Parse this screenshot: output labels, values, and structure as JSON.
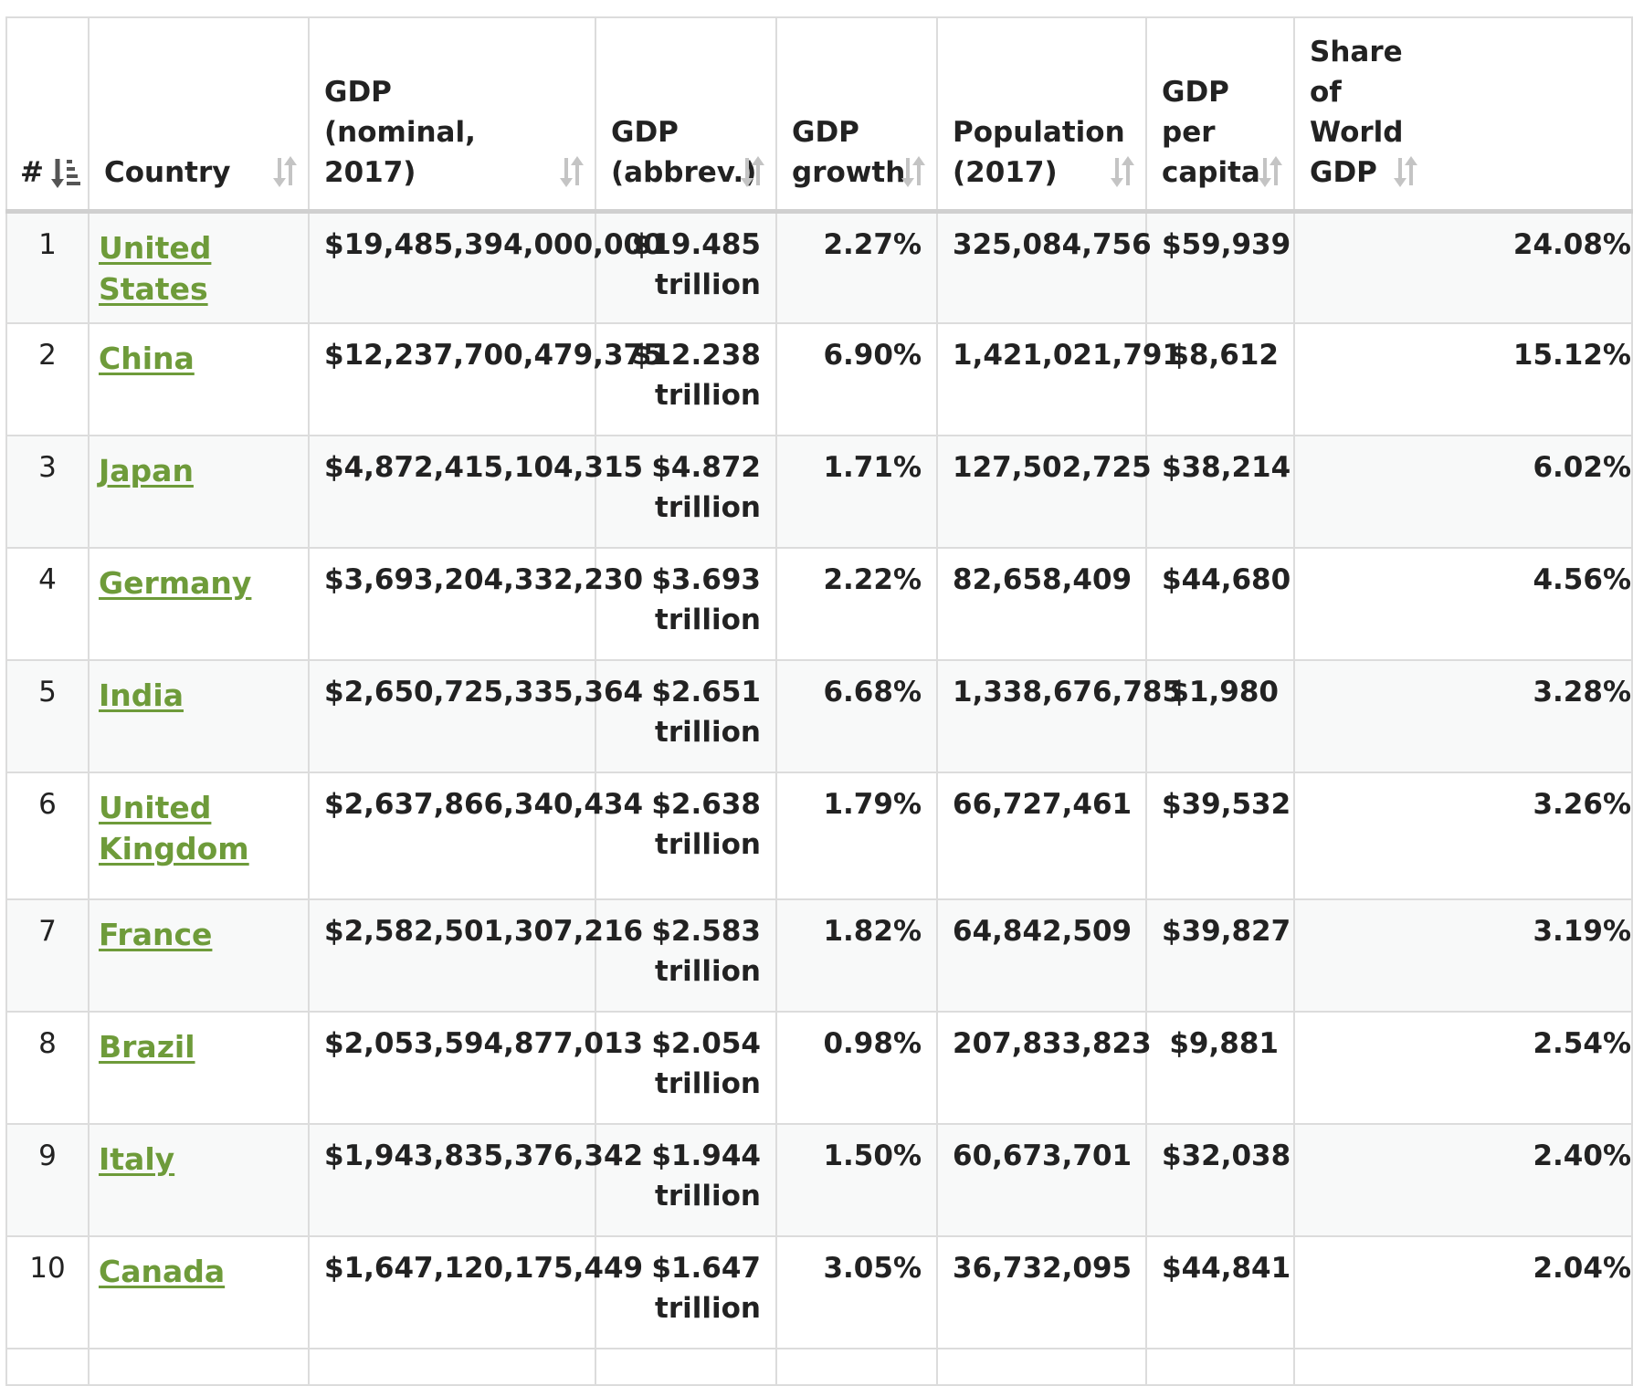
{
  "table": {
    "headers": [
      {
        "key": "rank",
        "label": "#",
        "sort": "sort-numeric-asc-icon"
      },
      {
        "key": "country",
        "label": "Country",
        "sort": "sort-icon"
      },
      {
        "key": "gdp_nominal",
        "label": "GDP (nominal, 2017)",
        "sort": "sort-icon"
      },
      {
        "key": "gdp_abbrev",
        "label": "GDP (abbrev.)",
        "sort": "sort-icon"
      },
      {
        "key": "gdp_growth",
        "label": "GDP growth",
        "sort": "sort-icon"
      },
      {
        "key": "population",
        "label": "Population (2017)",
        "sort": "sort-icon"
      },
      {
        "key": "gdp_per_capita",
        "label": "GDP per capita",
        "sort": "sort-icon"
      },
      {
        "key": "share_world_gdp",
        "label": "Share of World GDP",
        "sort": "sort-icon"
      }
    ],
    "rows": [
      {
        "rank": "1",
        "country": "United States",
        "gdp_nominal": "$19,485,394,000,000",
        "gdp_abbrev": "$19.485 trillion",
        "gdp_growth": "2.27%",
        "population": "325,084,756",
        "gdp_per_capita": "$59,939",
        "share_world_gdp": "24.08%"
      },
      {
        "rank": "2",
        "country": "China",
        "gdp_nominal": "$12,237,700,479,375",
        "gdp_abbrev": "$12.238 trillion",
        "gdp_growth": "6.90%",
        "population": "1,421,021,791",
        "gdp_per_capita": "$8,612",
        "share_world_gdp": "15.12%"
      },
      {
        "rank": "3",
        "country": "Japan",
        "gdp_nominal": "$4,872,415,104,315",
        "gdp_abbrev": "$4.872 trillion",
        "gdp_growth": "1.71%",
        "population": "127,502,725",
        "gdp_per_capita": "$38,214",
        "share_world_gdp": "6.02%"
      },
      {
        "rank": "4",
        "country": "Germany",
        "gdp_nominal": "$3,693,204,332,230",
        "gdp_abbrev": "$3.693 trillion",
        "gdp_growth": "2.22%",
        "population": "82,658,409",
        "gdp_per_capita": "$44,680",
        "share_world_gdp": "4.56%"
      },
      {
        "rank": "5",
        "country": "India",
        "gdp_nominal": "$2,650,725,335,364",
        "gdp_abbrev": "$2.651 trillion",
        "gdp_growth": "6.68%",
        "population": "1,338,676,785",
        "gdp_per_capita": "$1,980",
        "share_world_gdp": "3.28%"
      },
      {
        "rank": "6",
        "country": "United Kingdom",
        "gdp_nominal": "$2,637,866,340,434",
        "gdp_abbrev": "$2.638 trillion",
        "gdp_growth": "1.79%",
        "population": "66,727,461",
        "gdp_per_capita": "$39,532",
        "share_world_gdp": "3.26%"
      },
      {
        "rank": "7",
        "country": "France",
        "gdp_nominal": "$2,582,501,307,216",
        "gdp_abbrev": "$2.583 trillion",
        "gdp_growth": "1.82%",
        "population": "64,842,509",
        "gdp_per_capita": "$39,827",
        "share_world_gdp": "3.19%"
      },
      {
        "rank": "8",
        "country": "Brazil",
        "gdp_nominal": "$2,053,594,877,013",
        "gdp_abbrev": "$2.054 trillion",
        "gdp_growth": "0.98%",
        "population": "207,833,823",
        "gdp_per_capita": "$9,881",
        "share_world_gdp": "2.54%"
      },
      {
        "rank": "9",
        "country": "Italy",
        "gdp_nominal": "$1,943,835,376,342",
        "gdp_abbrev": "$1.944 trillion",
        "gdp_growth": "1.50%",
        "population": "60,673,701",
        "gdp_per_capita": "$32,038",
        "share_world_gdp": "2.40%"
      },
      {
        "rank": "10",
        "country": "Canada",
        "gdp_nominal": "$1,647,120,175,449",
        "gdp_abbrev": "$1.647 trillion",
        "gdp_growth": "3.05%",
        "population": "36,732,095",
        "gdp_per_capita": "$44,841",
        "share_world_gdp": "2.04%"
      }
    ]
  },
  "colors": {
    "link": "#6e9b3a",
    "border": "#dcdcdc",
    "stripe": "#f8f9f9",
    "sort_icon": "#c4c4c4",
    "sort_active": "#555555"
  }
}
